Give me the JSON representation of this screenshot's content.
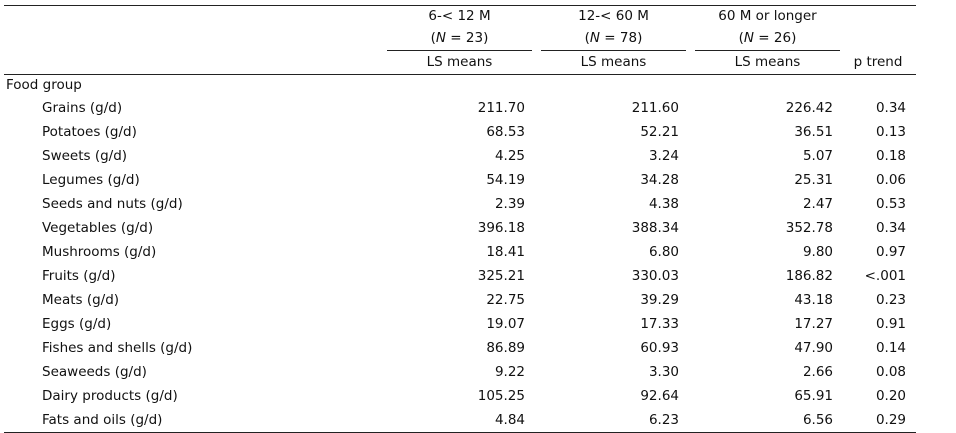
{
  "table": {
    "groups": [
      {
        "label": "6-< 12 M",
        "n_prefix": "(",
        "n_var": "N",
        "n_suffix": " = 23)",
        "stat": "LS means"
      },
      {
        "label": "12-< 60 M",
        "n_prefix": "(",
        "n_var": "N",
        "n_suffix": " = 78)",
        "stat": "LS means"
      },
      {
        "label": "60 M or longer",
        "n_prefix": "(",
        "n_var": "N",
        "n_suffix": " = 26)",
        "stat": "LS means"
      }
    ],
    "p_trend_label": "p trend",
    "section_label": "Food group",
    "rows": [
      {
        "food": "Grains (g/d)",
        "v1": "211.70",
        "v2": "211.60",
        "v3": "226.42",
        "p": "0.34"
      },
      {
        "food": "Potatoes (g/d)",
        "v1": "68.53",
        "v2": "52.21",
        "v3": "36.51",
        "p": "0.13"
      },
      {
        "food": "Sweets (g/d)",
        "v1": "4.25",
        "v2": "3.24",
        "v3": "5.07",
        "p": "0.18"
      },
      {
        "food": "Legumes (g/d)",
        "v1": "54.19",
        "v2": "34.28",
        "v3": "25.31",
        "p": "0.06"
      },
      {
        "food": "Seeds and nuts (g/d)",
        "v1": "2.39",
        "v2": "4.38",
        "v3": "2.47",
        "p": "0.53"
      },
      {
        "food": "Vegetables (g/d)",
        "v1": "396.18",
        "v2": "388.34",
        "v3": "352.78",
        "p": "0.34"
      },
      {
        "food": "Mushrooms (g/d)",
        "v1": "18.41",
        "v2": "6.80",
        "v3": "9.80",
        "p": "0.97"
      },
      {
        "food": "Fruits (g/d)",
        "v1": "325.21",
        "v2": "330.03",
        "v3": "186.82",
        "p": "<.001"
      },
      {
        "food": "Meats (g/d)",
        "v1": "22.75",
        "v2": "39.29",
        "v3": "43.18",
        "p": "0.23"
      },
      {
        "food": "Eggs (g/d)",
        "v1": "19.07",
        "v2": "17.33",
        "v3": "17.27",
        "p": "0.91"
      },
      {
        "food": "Fishes and shells (g/d)",
        "v1": "86.89",
        "v2": "60.93",
        "v3": "47.90",
        "p": "0.14"
      },
      {
        "food": "Seaweeds (g/d)",
        "v1": "9.22",
        "v2": "3.30",
        "v3": "2.66",
        "p": "0.08"
      },
      {
        "food": "Dairy products (g/d)",
        "v1": "105.25",
        "v2": "92.64",
        "v3": "65.91",
        "p": "0.20"
      },
      {
        "food": "Fats and oils (g/d)",
        "v1": "4.84",
        "v2": "6.23",
        "v3": "6.56",
        "p": "0.29"
      }
    ]
  }
}
